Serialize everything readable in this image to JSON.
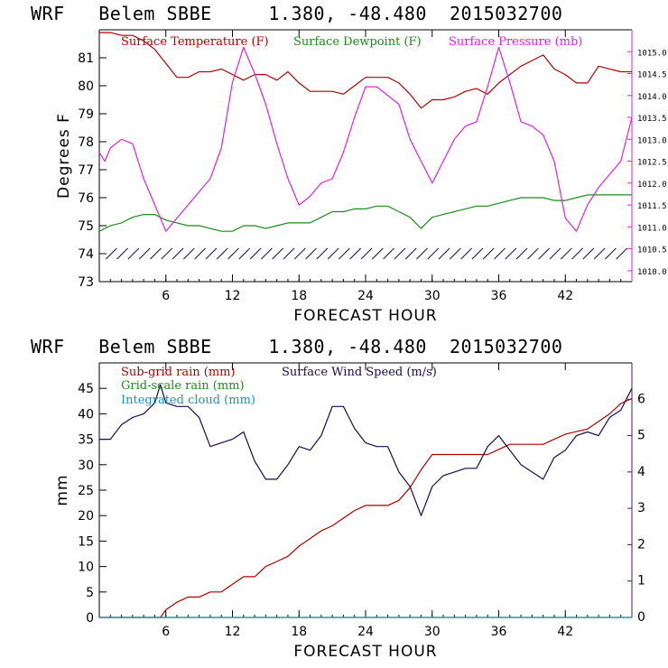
{
  "header": {
    "top_title": "WRF   Belem SBBE     1.380, -48.480  2015032700",
    "bottom_title": "WRF   Belem SBBE     1.380, -48.480  2015032700"
  },
  "colors": {
    "temperature": "#b00000",
    "dewpoint": "#1c8a1c",
    "pressure": "#e020e0",
    "wind": "#1a0a4a",
    "subgrid_rain": "#b00000",
    "gridscale_rain": "#1c8a1c",
    "cloud": "#2090c0",
    "frame_left": "#000000",
    "frame_right_top": "#e020e0",
    "frame_right_bottom": "#4a1a6a"
  },
  "chart_data": [
    {
      "type": "line",
      "xlabel": "FORECAST HOUR",
      "ylabel": "Degrees F",
      "xlim": [
        0,
        48
      ],
      "ylim": [
        73,
        82
      ],
      "y2lim": [
        1009.75,
        1015.5
      ],
      "xticks": [
        "6",
        "12",
        "18",
        "24",
        "30",
        "36",
        "42"
      ],
      "yticks": [
        "73",
        "74",
        "75",
        "76",
        "77",
        "78",
        "79",
        "80",
        "81"
      ],
      "y2ticks": [
        "1010.0",
        "1010.5",
        "1011.0",
        "1011.5",
        "1012.0",
        "1012.5",
        "1013.0",
        "1013.5",
        "1014.0",
        "1014.5",
        "1015.0"
      ],
      "legend": [
        "Surface Temperature (F)",
        "Surface Dewpoint (F)",
        "Surface Pressure (mb)"
      ],
      "grid": false,
      "wind_barbs_row_y": 74,
      "series": [
        {
          "name": "Surface Temperature (F)",
          "axis": "left",
          "x": [
            0,
            1,
            2,
            3,
            4,
            5,
            6,
            7,
            8,
            9,
            10,
            11,
            12,
            13,
            14,
            15,
            16,
            17,
            18,
            19,
            20,
            21,
            22,
            23,
            24,
            25,
            26,
            27,
            28,
            29,
            30,
            31,
            32,
            33,
            34,
            35,
            36,
            37,
            38,
            39,
            40,
            41,
            42,
            43,
            44,
            45,
            46,
            47,
            48
          ],
          "values": [
            81.9,
            81.9,
            81.8,
            81.8,
            81.6,
            81.3,
            80.8,
            80.3,
            80.3,
            80.5,
            80.5,
            80.6,
            80.4,
            80.2,
            80.4,
            80.4,
            80.2,
            80.5,
            80.1,
            79.8,
            79.8,
            79.8,
            79.7,
            80.0,
            80.3,
            80.3,
            80.3,
            80.1,
            79.7,
            79.2,
            79.5,
            79.5,
            79.6,
            79.8,
            79.9,
            79.7,
            80.1,
            80.4,
            80.7,
            80.9,
            81.1,
            80.6,
            80.4,
            80.1,
            80.1,
            80.7,
            80.6,
            80.5,
            80.5
          ]
        },
        {
          "name": "Surface Dewpoint (F)",
          "axis": "left",
          "x": [
            0,
            1,
            2,
            3,
            4,
            5,
            6,
            7,
            8,
            9,
            10,
            11,
            12,
            13,
            14,
            15,
            16,
            17,
            18,
            19,
            20,
            21,
            22,
            23,
            24,
            25,
            26,
            27,
            28,
            29,
            30,
            31,
            32,
            33,
            34,
            35,
            36,
            37,
            38,
            39,
            40,
            41,
            42,
            43,
            44,
            45,
            46,
            47,
            48
          ],
          "values": [
            74.8,
            75.0,
            75.1,
            75.3,
            75.4,
            75.4,
            75.2,
            75.1,
            75.0,
            75.0,
            74.9,
            74.8,
            74.8,
            75.0,
            75.0,
            74.9,
            75.0,
            75.1,
            75.1,
            75.1,
            75.3,
            75.5,
            75.5,
            75.6,
            75.6,
            75.7,
            75.7,
            75.5,
            75.3,
            74.9,
            75.3,
            75.4,
            75.5,
            75.6,
            75.7,
            75.7,
            75.8,
            75.9,
            76.0,
            76.0,
            76.0,
            75.9,
            75.9,
            76.0,
            76.1,
            76.1,
            76.1,
            76.1,
            76.1
          ]
        },
        {
          "name": "Surface Pressure (mb)",
          "axis": "right",
          "x": [
            0,
            0.5,
            1,
            2,
            3,
            4,
            5,
            6,
            7,
            8,
            9,
            10,
            11,
            12,
            13,
            14,
            15,
            16,
            17,
            18,
            19,
            20,
            21,
            22,
            23,
            24,
            25,
            26,
            27,
            28,
            29,
            30,
            31,
            32,
            33,
            34,
            35,
            36,
            37,
            38,
            39,
            40,
            41,
            42,
            43,
            44,
            45,
            46,
            47,
            48
          ],
          "values": [
            1012.7,
            1012.5,
            1012.8,
            1013.0,
            1012.9,
            1012.1,
            1011.5,
            1010.9,
            1011.2,
            1011.5,
            1011.8,
            1012.1,
            1012.8,
            1014.3,
            1015.1,
            1014.5,
            1013.8,
            1012.9,
            1012.1,
            1011.5,
            1011.7,
            1012.0,
            1012.1,
            1012.7,
            1013.5,
            1014.2,
            1014.2,
            1014.0,
            1013.8,
            1013.0,
            1012.5,
            1012.0,
            1012.5,
            1013.0,
            1013.3,
            1013.4,
            1014.2,
            1015.1,
            1014.3,
            1013.4,
            1013.3,
            1013.1,
            1012.5,
            1011.2,
            1010.9,
            1011.5,
            1011.9,
            1012.2,
            1012.5,
            1013.5
          ]
        }
      ]
    },
    {
      "type": "line",
      "xlabel": "FORECAST HOUR",
      "ylabel": "mm",
      "xlim": [
        0,
        48
      ],
      "ylim": [
        0,
        50
      ],
      "y2lim": [
        0,
        7
      ],
      "xticks": [
        "6",
        "12",
        "18",
        "24",
        "30",
        "36",
        "42"
      ],
      "yticks": [
        "0",
        "5",
        "10",
        "15",
        "20",
        "25",
        "30",
        "35",
        "40",
        "45"
      ],
      "y2ticks": [
        "0",
        "1",
        "2",
        "3",
        "4",
        "5",
        "6"
      ],
      "legend": [
        "Sub-grid rain (mm)",
        "Surface Wind Speed (m/s)",
        "Grid-scale rain (mm)",
        "Integrated cloud (mm)"
      ],
      "grid": false,
      "series": [
        {
          "name": "Sub-grid rain (mm)",
          "axis": "left",
          "x": [
            0,
            5.5,
            6,
            7,
            8,
            9,
            10,
            11,
            12,
            13,
            14,
            15,
            16,
            17,
            18,
            19,
            20,
            21,
            22,
            23,
            24,
            25,
            26,
            27,
            28,
            29,
            30,
            31,
            32,
            33,
            34,
            35,
            36,
            37,
            38,
            39,
            40,
            41,
            42,
            43,
            44,
            45,
            46,
            47,
            48
          ],
          "values": [
            0,
            0,
            1.5,
            3,
            4,
            4,
            5,
            5,
            6.5,
            8,
            8,
            10,
            11,
            12,
            14,
            15.5,
            17,
            18,
            19.5,
            21,
            22,
            22,
            22,
            23,
            25.5,
            29,
            32,
            32,
            32,
            32,
            32,
            32,
            33,
            34,
            34,
            34,
            34,
            35,
            36,
            36.5,
            37,
            38.5,
            40,
            42,
            43
          ]
        },
        {
          "name": "Grid-scale rain (mm)",
          "axis": "left",
          "x": [
            0,
            48
          ],
          "values": [
            0,
            0
          ]
        },
        {
          "name": "Integrated cloud (mm)",
          "axis": "left",
          "x": [
            0,
            48
          ],
          "values": [
            0,
            0
          ]
        },
        {
          "name": "Surface Wind Speed (m/s)",
          "axis": "right",
          "x": [
            0,
            1,
            2,
            3,
            4,
            5,
            5.5,
            6,
            7,
            8,
            9,
            10,
            11,
            12,
            13,
            14,
            15,
            16,
            17,
            18,
            19,
            20,
            21,
            22,
            23,
            24,
            25,
            26,
            27,
            28,
            29,
            30,
            31,
            32,
            33,
            34,
            35,
            36,
            37,
            38,
            39,
            40,
            41,
            42,
            43,
            44,
            45,
            46,
            47,
            48
          ],
          "values": [
            4.9,
            4.9,
            5.3,
            5.5,
            5.6,
            5.9,
            6.4,
            5.9,
            5.8,
            5.8,
            5.5,
            4.7,
            4.8,
            4.9,
            5.1,
            4.3,
            3.8,
            3.8,
            4.2,
            4.7,
            4.6,
            5.0,
            5.8,
            5.8,
            5.2,
            4.8,
            4.7,
            4.7,
            4.0,
            3.6,
            2.8,
            3.6,
            3.9,
            4.0,
            4.1,
            4.1,
            4.7,
            5.0,
            4.6,
            4.2,
            4.0,
            3.8,
            4.4,
            4.6,
            5.0,
            5.1,
            5.0,
            5.5,
            5.7,
            6.3
          ]
        }
      ]
    }
  ]
}
